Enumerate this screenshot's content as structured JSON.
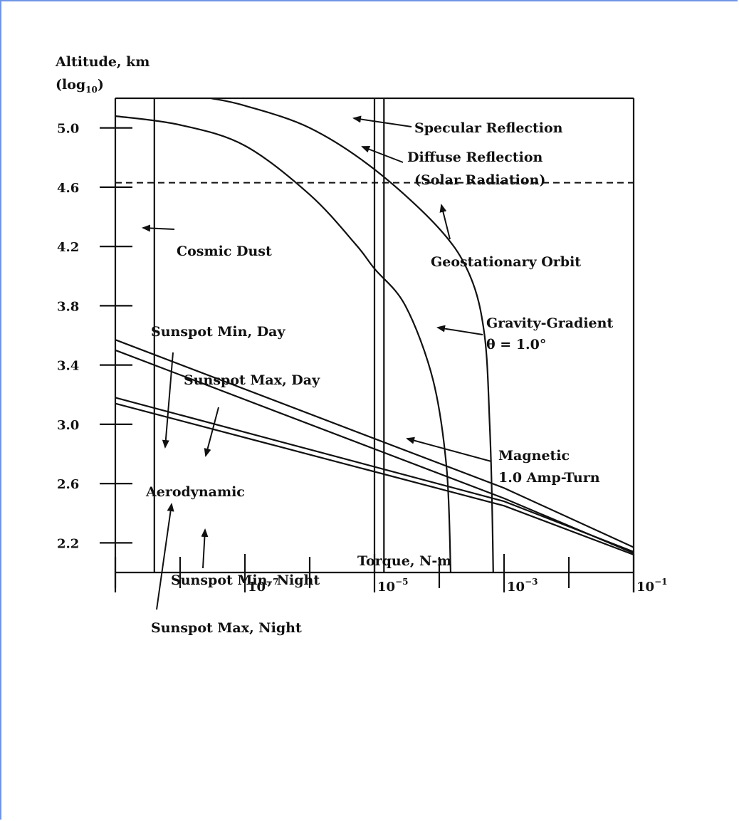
{
  "colors": {
    "frame_border": "#6f96e6",
    "ink": "#111111",
    "background": "#ffffff"
  },
  "chart_data": {
    "type": "line",
    "title": "",
    "xlabel": "Torque, N-m",
    "ylabel_line1": "Altitude, km",
    "ylabel_line2": "(log",
    "ylabel_sub": "10",
    "ylabel_close": ")",
    "x_scale": "log",
    "xlim": [
      1e-09,
      0.1
    ],
    "ylim": [
      2.0,
      5.2
    ],
    "x_ticks": [
      {
        "label": "10",
        "exp": "−7"
      },
      {
        "label": "10",
        "exp": "−5"
      },
      {
        "label": "10",
        "exp": "−3"
      },
      {
        "label": "10",
        "exp": "−1"
      }
    ],
    "y_ticks": [
      "5.0",
      "4.6",
      "4.2",
      "3.8",
      "3.4",
      "3.0",
      "2.6",
      "2.2"
    ],
    "grid": false,
    "series": [
      {
        "name": "Cosmic Dust",
        "points": [
          [
            4e-09,
            2.0
          ],
          [
            4e-09,
            5.2
          ]
        ]
      },
      {
        "name": "Specular Reflection",
        "points": [
          [
            1e-05,
            2.0
          ],
          [
            1e-05,
            5.2
          ]
        ]
      },
      {
        "name": "Diffuse Reflection",
        "points": [
          [
            1.4e-05,
            2.0
          ],
          [
            1.4e-05,
            5.2
          ]
        ]
      },
      {
        "name": "Geostationary Orbit",
        "points": [
          [
            1e-09,
            4.63
          ],
          [
            0.1,
            4.63
          ]
        ]
      },
      {
        "name": "Gravity-Gradient",
        "points": [
          [
            3e-08,
            5.2
          ],
          [
            1e-07,
            5.15
          ],
          [
            1e-06,
            5.0
          ],
          [
            1e-05,
            4.72
          ],
          [
            0.0001,
            4.32
          ],
          [
            0.0003,
            4.0
          ],
          [
            0.0005,
            3.6
          ],
          [
            0.0006,
            3.0
          ],
          [
            0.00065,
            2.5
          ],
          [
            0.00068,
            2.0
          ]
        ]
      },
      {
        "name": "Magnetic",
        "points": [
          [
            1e-09,
            5.08
          ],
          [
            1e-08,
            5.02
          ],
          [
            1e-07,
            4.88
          ],
          [
            1e-06,
            4.55
          ],
          [
            5e-06,
            4.22
          ],
          [
            1e-05,
            4.05
          ],
          [
            3e-05,
            3.8
          ],
          [
            8e-05,
            3.3
          ],
          [
            0.00013,
            2.7
          ],
          [
            0.00015,
            2.0
          ]
        ]
      },
      {
        "name": "Sunspot Max, Day",
        "points": [
          [
            1e-09,
            3.57
          ],
          [
            0.001,
            2.57
          ],
          [
            0.1,
            2.17
          ]
        ]
      },
      {
        "name": "Sunspot Min, Day",
        "points": [
          [
            1e-09,
            3.5
          ],
          [
            0.001,
            2.5
          ],
          [
            0.1,
            2.13
          ]
        ]
      },
      {
        "name": "Sunspot Max, Night",
        "points": [
          [
            1e-09,
            3.18
          ],
          [
            0.001,
            2.48
          ],
          [
            0.1,
            2.14
          ]
        ]
      },
      {
        "name": "Sunspot Min, Night",
        "points": [
          [
            1e-09,
            3.14
          ],
          [
            0.001,
            2.45
          ],
          [
            0.1,
            2.12
          ]
        ]
      }
    ],
    "annotations": {
      "specular": "Specular Reflection",
      "diffuse_line1": "Diffuse Reflection",
      "diffuse_line2": "(Solar Radiation)",
      "cosmic_dust": "Cosmic Dust",
      "geostationary": "Geostationary Orbit",
      "gravity_line1": "Gravity-Gradient",
      "gravity_line2": "θ = 1.0°",
      "sunspot_min_day": "Sunspot Min, Day",
      "sunspot_max_day": "Sunspot Max, Day",
      "magnetic_line1": "Magnetic",
      "magnetic_line2": "1.0 Amp-Turn",
      "aerodynamic": "Aerodynamic",
      "sunspot_min_night": "Sunspot Min, Night",
      "sunspot_max_night": "Sunspot Max, Night"
    }
  }
}
